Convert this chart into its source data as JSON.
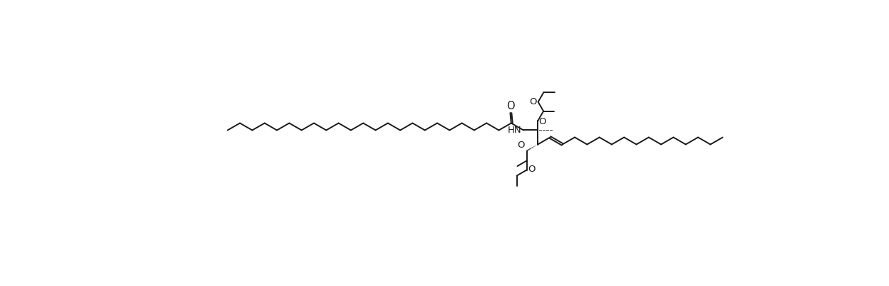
{
  "figsize": [
    12.5,
    4.03
  ],
  "dpi": 100,
  "bg": "#ffffff",
  "lc": "#1a1a1a",
  "lw": 1.4,
  "fs": 9.5,
  "xlim": [
    0,
    25
  ],
  "ylim": [
    0,
    8.06
  ]
}
